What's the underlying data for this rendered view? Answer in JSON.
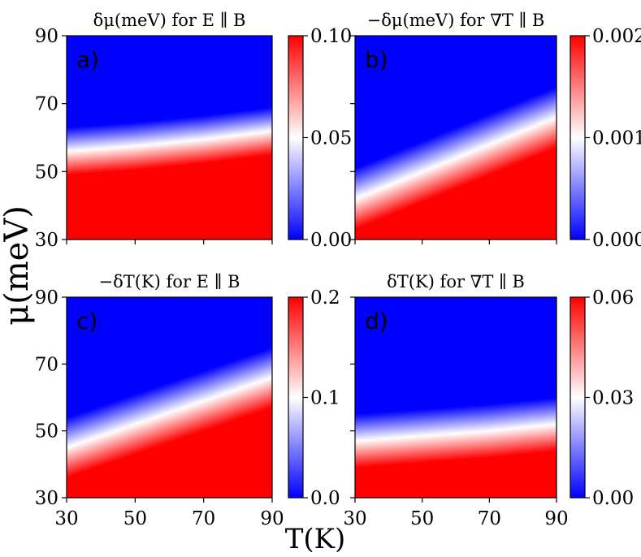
{
  "figure": {
    "ylabel": "μ(meV)",
    "xlabel": "T(K)"
  },
  "chart_data": [
    {
      "type": "heatmap",
      "panel": "a)",
      "title": "δμ(meV) for E ∥ B",
      "xlim": [
        30,
        90
      ],
      "ylim": [
        30,
        90
      ],
      "yticks": [
        "30",
        "50",
        "70",
        "90"
      ],
      "xticks": [],
      "colorbar": {
        "min": 0.0,
        "max": 0.1,
        "ticks": [
          "0.00",
          "0.05",
          "0.10"
        ]
      },
      "colormap": [
        "#0000ff",
        "#ffffff",
        "#ff0000"
      ],
      "contour_mid": {
        "T": [
          30,
          50,
          70,
          90
        ],
        "mu": [
          56,
          57.5,
          59.5,
          62
        ]
      },
      "transition_width_meV": 14
    },
    {
      "type": "heatmap",
      "panel": "b)",
      "title": "−δμ(meV) for ∇T ∥ B",
      "xlim": [
        30,
        90
      ],
      "ylim": [
        30,
        90
      ],
      "yticks": [],
      "xticks": [],
      "colorbar": {
        "min": 0.0,
        "max": 0.002,
        "ticks": [
          "0.000",
          "0.001",
          "0.002"
        ]
      },
      "colormap": [
        "#0000ff",
        "#ffffff",
        "#ff0000"
      ],
      "contour_mid": {
        "T": [
          30,
          50,
          70,
          90
        ],
        "mu": [
          42,
          50,
          58,
          66
        ]
      },
      "transition_width_meV": 18
    },
    {
      "type": "heatmap",
      "panel": "c)",
      "title": "−δT(K) for E ∥ B",
      "xlim": [
        30,
        90
      ],
      "ylim": [
        30,
        90
      ],
      "yticks": [
        "30",
        "50",
        "70",
        "90"
      ],
      "xticks": [
        "30",
        "50",
        "70",
        "90"
      ],
      "colorbar": {
        "min": 0.0,
        "max": 0.2,
        "ticks": [
          "0.0",
          "0.1",
          "0.2"
        ]
      },
      "colormap": [
        "#0000ff",
        "#ffffff",
        "#ff0000"
      ],
      "contour_mid": {
        "T": [
          30,
          50,
          70,
          90
        ],
        "mu": [
          45,
          52,
          59,
          66
        ]
      },
      "transition_width_meV": 18
    },
    {
      "type": "heatmap",
      "panel": "d)",
      "title": "δT(K) for ∇T ∥ B",
      "xlim": [
        30,
        90
      ],
      "ylim": [
        30,
        90
      ],
      "yticks": [],
      "xticks": [
        "30",
        "50",
        "70",
        "90"
      ],
      "colorbar": {
        "min": 0.0,
        "max": 0.06,
        "ticks": [
          "0.00",
          "0.03",
          "0.06"
        ]
      },
      "colormap": [
        "#0000ff",
        "#ffffff",
        "#ff0000"
      ],
      "contour_mid": {
        "T": [
          30,
          50,
          70,
          90
        ],
        "mu": [
          47,
          48.5,
          50,
          52
        ]
      },
      "transition_width_meV": 16
    }
  ]
}
